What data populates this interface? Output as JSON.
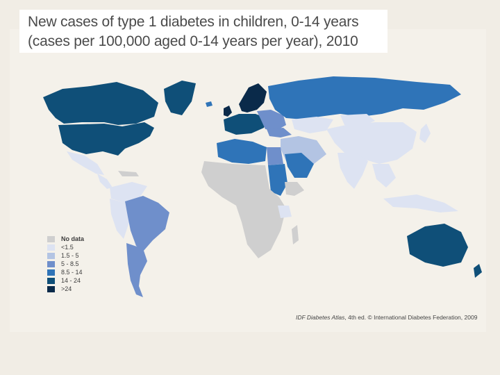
{
  "title": {
    "line1": "New cases of type 1 diabetes in children, 0-14 years",
    "line2": "(cases per 100,000 aged 0-14 years per year), 2010"
  },
  "legend": {
    "items": [
      {
        "label": "No data",
        "color": "#cfcfcf"
      },
      {
        "label": "<1.5",
        "color": "#dde3f2"
      },
      {
        "label": "1.5 - 5",
        "color": "#b3c4e3"
      },
      {
        "label": "5 - 8.5",
        "color": "#6f8fcb"
      },
      {
        "label": "8.5 - 14",
        "color": "#2f74b8"
      },
      {
        "label": "14 - 24",
        "color": "#0f4f78"
      },
      {
        "label": ">24",
        "color": "#0a2a4a"
      }
    ]
  },
  "credit": {
    "atlas": "IDF Diabetes Atlas",
    "edition": ", 4th ed. © International Diabetes Federation, 2009"
  }
}
